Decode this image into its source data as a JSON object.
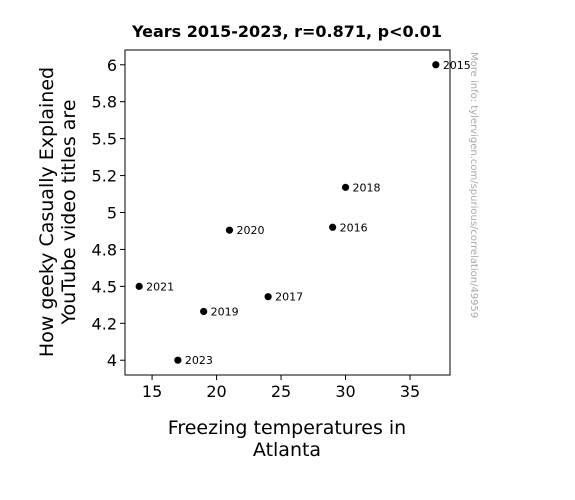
{
  "chart_data": {
    "type": "scatter",
    "title": "Years 2015-2023, r=0.871, p<0.01",
    "xlabel": [
      "Freezing temperatures in",
      "Atlanta"
    ],
    "ylabel": [
      "How geeky Casually Explained",
      "YouTube video titles are"
    ],
    "xlim": [
      12.9,
      38.1
    ],
    "ylim": [
      3.9,
      6.1
    ],
    "x_ticks": [
      {
        "value": 15,
        "label": "15"
      },
      {
        "value": 20,
        "label": "20"
      },
      {
        "value": 25,
        "label": "25"
      },
      {
        "value": 30,
        "label": "30"
      },
      {
        "value": 35,
        "label": "35"
      }
    ],
    "y_ticks": [
      {
        "value": 4.0,
        "label": "4"
      },
      {
        "value": 4.25,
        "label": "4.2"
      },
      {
        "value": 4.5,
        "label": "4.5"
      },
      {
        "value": 4.75,
        "label": "4.8"
      },
      {
        "value": 5.0,
        "label": "5"
      },
      {
        "value": 5.25,
        "label": "5.2"
      },
      {
        "value": 5.5,
        "label": "5.5"
      },
      {
        "value": 5.75,
        "label": "5.8"
      },
      {
        "value": 6.0,
        "label": "6"
      }
    ],
    "points": [
      {
        "x": 37,
        "y": 6.0,
        "label": "2015"
      },
      {
        "x": 29,
        "y": 4.9,
        "label": "2016"
      },
      {
        "x": 24,
        "y": 4.43,
        "label": "2017"
      },
      {
        "x": 30,
        "y": 5.17,
        "label": "2018"
      },
      {
        "x": 19,
        "y": 4.33,
        "label": "2019"
      },
      {
        "x": 21,
        "y": 4.88,
        "label": "2020"
      },
      {
        "x": 14,
        "y": 4.5,
        "label": "2021"
      },
      {
        "x": 17,
        "y": 4.0,
        "label": "2023"
      }
    ],
    "grid": false,
    "marker_color": "#000000",
    "watermark": "More info: tylervigen.com/spurious/correlation/49959"
  }
}
